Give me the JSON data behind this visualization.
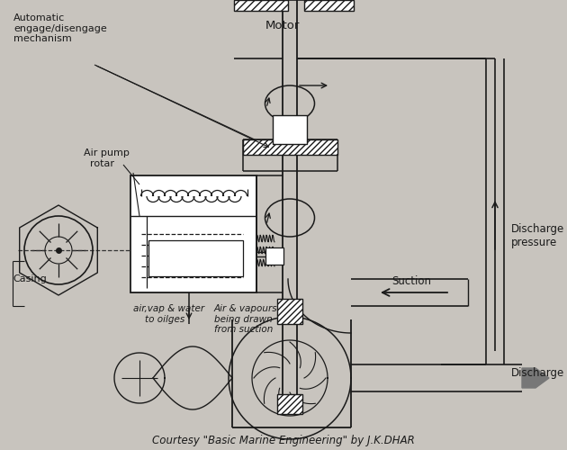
{
  "bg_color": "#c8c4be",
  "line_color": "#1a1a1a",
  "title_text": "Courtesy \"Basic Marine Engineering\" by J.K.DHAR",
  "labels": {
    "auto_mechanism": "Automatic\nengage/disengage\nmechanism",
    "air_pump_rotor": "Air pump\n  rotar",
    "casing": "Casing",
    "air_vap": "air,vap & water\n    to oilges",
    "air_vapours": "Air & vapours\nbeing drawn\nfrom suction",
    "motor": "Motor",
    "discharge_pressure": "Discharge\npressure",
    "suction": "Suction",
    "discharge": "Discharge"
  },
  "figsize": [
    6.3,
    5.0
  ],
  "dpi": 100
}
